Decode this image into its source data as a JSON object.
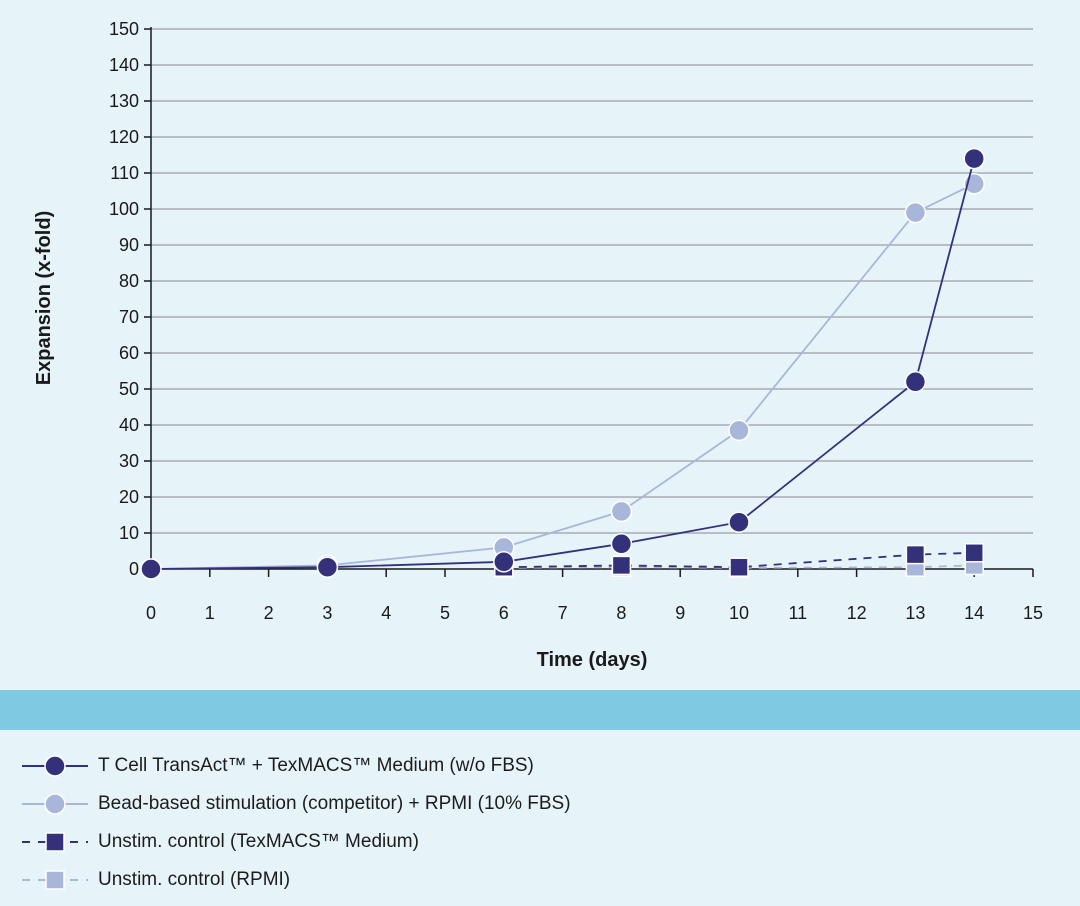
{
  "colors": {
    "background": "#e6f4fa",
    "band": "#7fc9e3",
    "axis": "#1a1a1a",
    "grid": "#a8aab3",
    "series_dark": "#33317a",
    "series_light": "#a8b6da"
  },
  "chart_data": {
    "type": "line",
    "xlabel": "Time (days)",
    "ylabel": "Expansion (x-fold)",
    "xlim": [
      0,
      15
    ],
    "ylim": [
      0,
      150
    ],
    "x_ticks": [
      0,
      1,
      2,
      3,
      4,
      5,
      6,
      7,
      8,
      9,
      10,
      11,
      12,
      13,
      14,
      15
    ],
    "y_ticks": [
      0,
      10,
      20,
      30,
      40,
      50,
      60,
      70,
      80,
      90,
      100,
      110,
      120,
      130,
      140,
      150
    ],
    "grid": "horizontal",
    "legend_position": "bottom",
    "series": [
      {
        "name": "T Cell TransAct™ + TexMACS™ Medium (w/o FBS)",
        "marker": "circle",
        "line": "solid",
        "color": "#33317a",
        "x": [
          0,
          3,
          6,
          8,
          10,
          13,
          14
        ],
        "y": [
          0,
          0.5,
          2,
          7,
          13,
          52,
          114
        ]
      },
      {
        "name": "Bead-based stimulation (competitor) + RPMI (10% FBS)",
        "marker": "circle",
        "line": "solid",
        "color": "#a8b6da",
        "x": [
          0,
          3,
          6,
          8,
          10,
          13,
          14
        ],
        "y": [
          0,
          1,
          6,
          16,
          38.5,
          99,
          107
        ]
      },
      {
        "name": "Unstim. control (TexMACS™ Medium)",
        "marker": "square",
        "line": "dashed",
        "color": "#33317a",
        "x": [
          6,
          8,
          10,
          13,
          14
        ],
        "y": [
          0.5,
          1,
          0.5,
          4,
          4.5
        ]
      },
      {
        "name": "Unstim. control (RPMI)",
        "marker": "square",
        "line": "dashed",
        "color": "#a8b6da",
        "x": [
          6,
          8,
          10,
          13,
          14
        ],
        "y": [
          0.3,
          0.5,
          0.3,
          0.5,
          1
        ]
      }
    ]
  }
}
